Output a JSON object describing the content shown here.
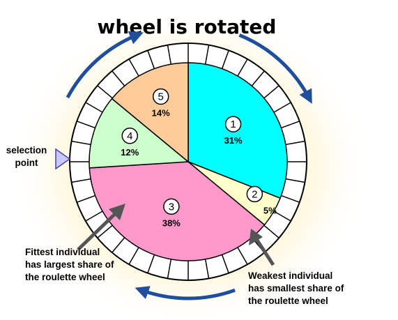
{
  "title": "wheel is rotated",
  "selection_point": {
    "line1": "selection",
    "line2": "point"
  },
  "segments": [
    {
      "id": "1",
      "percent_label": "31%",
      "share": 31,
      "color": "#00ffff"
    },
    {
      "id": "2",
      "percent_label": "5%",
      "share": 5,
      "color": "#ffffcc"
    },
    {
      "id": "3",
      "percent_label": "38%",
      "share": 38,
      "color": "#ff99cc"
    },
    {
      "id": "4",
      "percent_label": "12%",
      "share": 12,
      "color": "#ccffcc"
    },
    {
      "id": "5",
      "percent_label": "14%",
      "share": 14,
      "color": "#ffcc99"
    }
  ],
  "fittest_note": {
    "line1": "Fittest individual",
    "line2": "has largest share of",
    "line3": "the roulette wheel"
  },
  "weakest_note": {
    "line1": "Weakest individual",
    "line2": "has smallest share of",
    "line3": "the roulette wheel"
  },
  "colors": {
    "background_glow": "#fff6d0",
    "arrow": "#1f4e9c",
    "pointer": "#c8c8ff",
    "callout_arrow": "#555555"
  }
}
